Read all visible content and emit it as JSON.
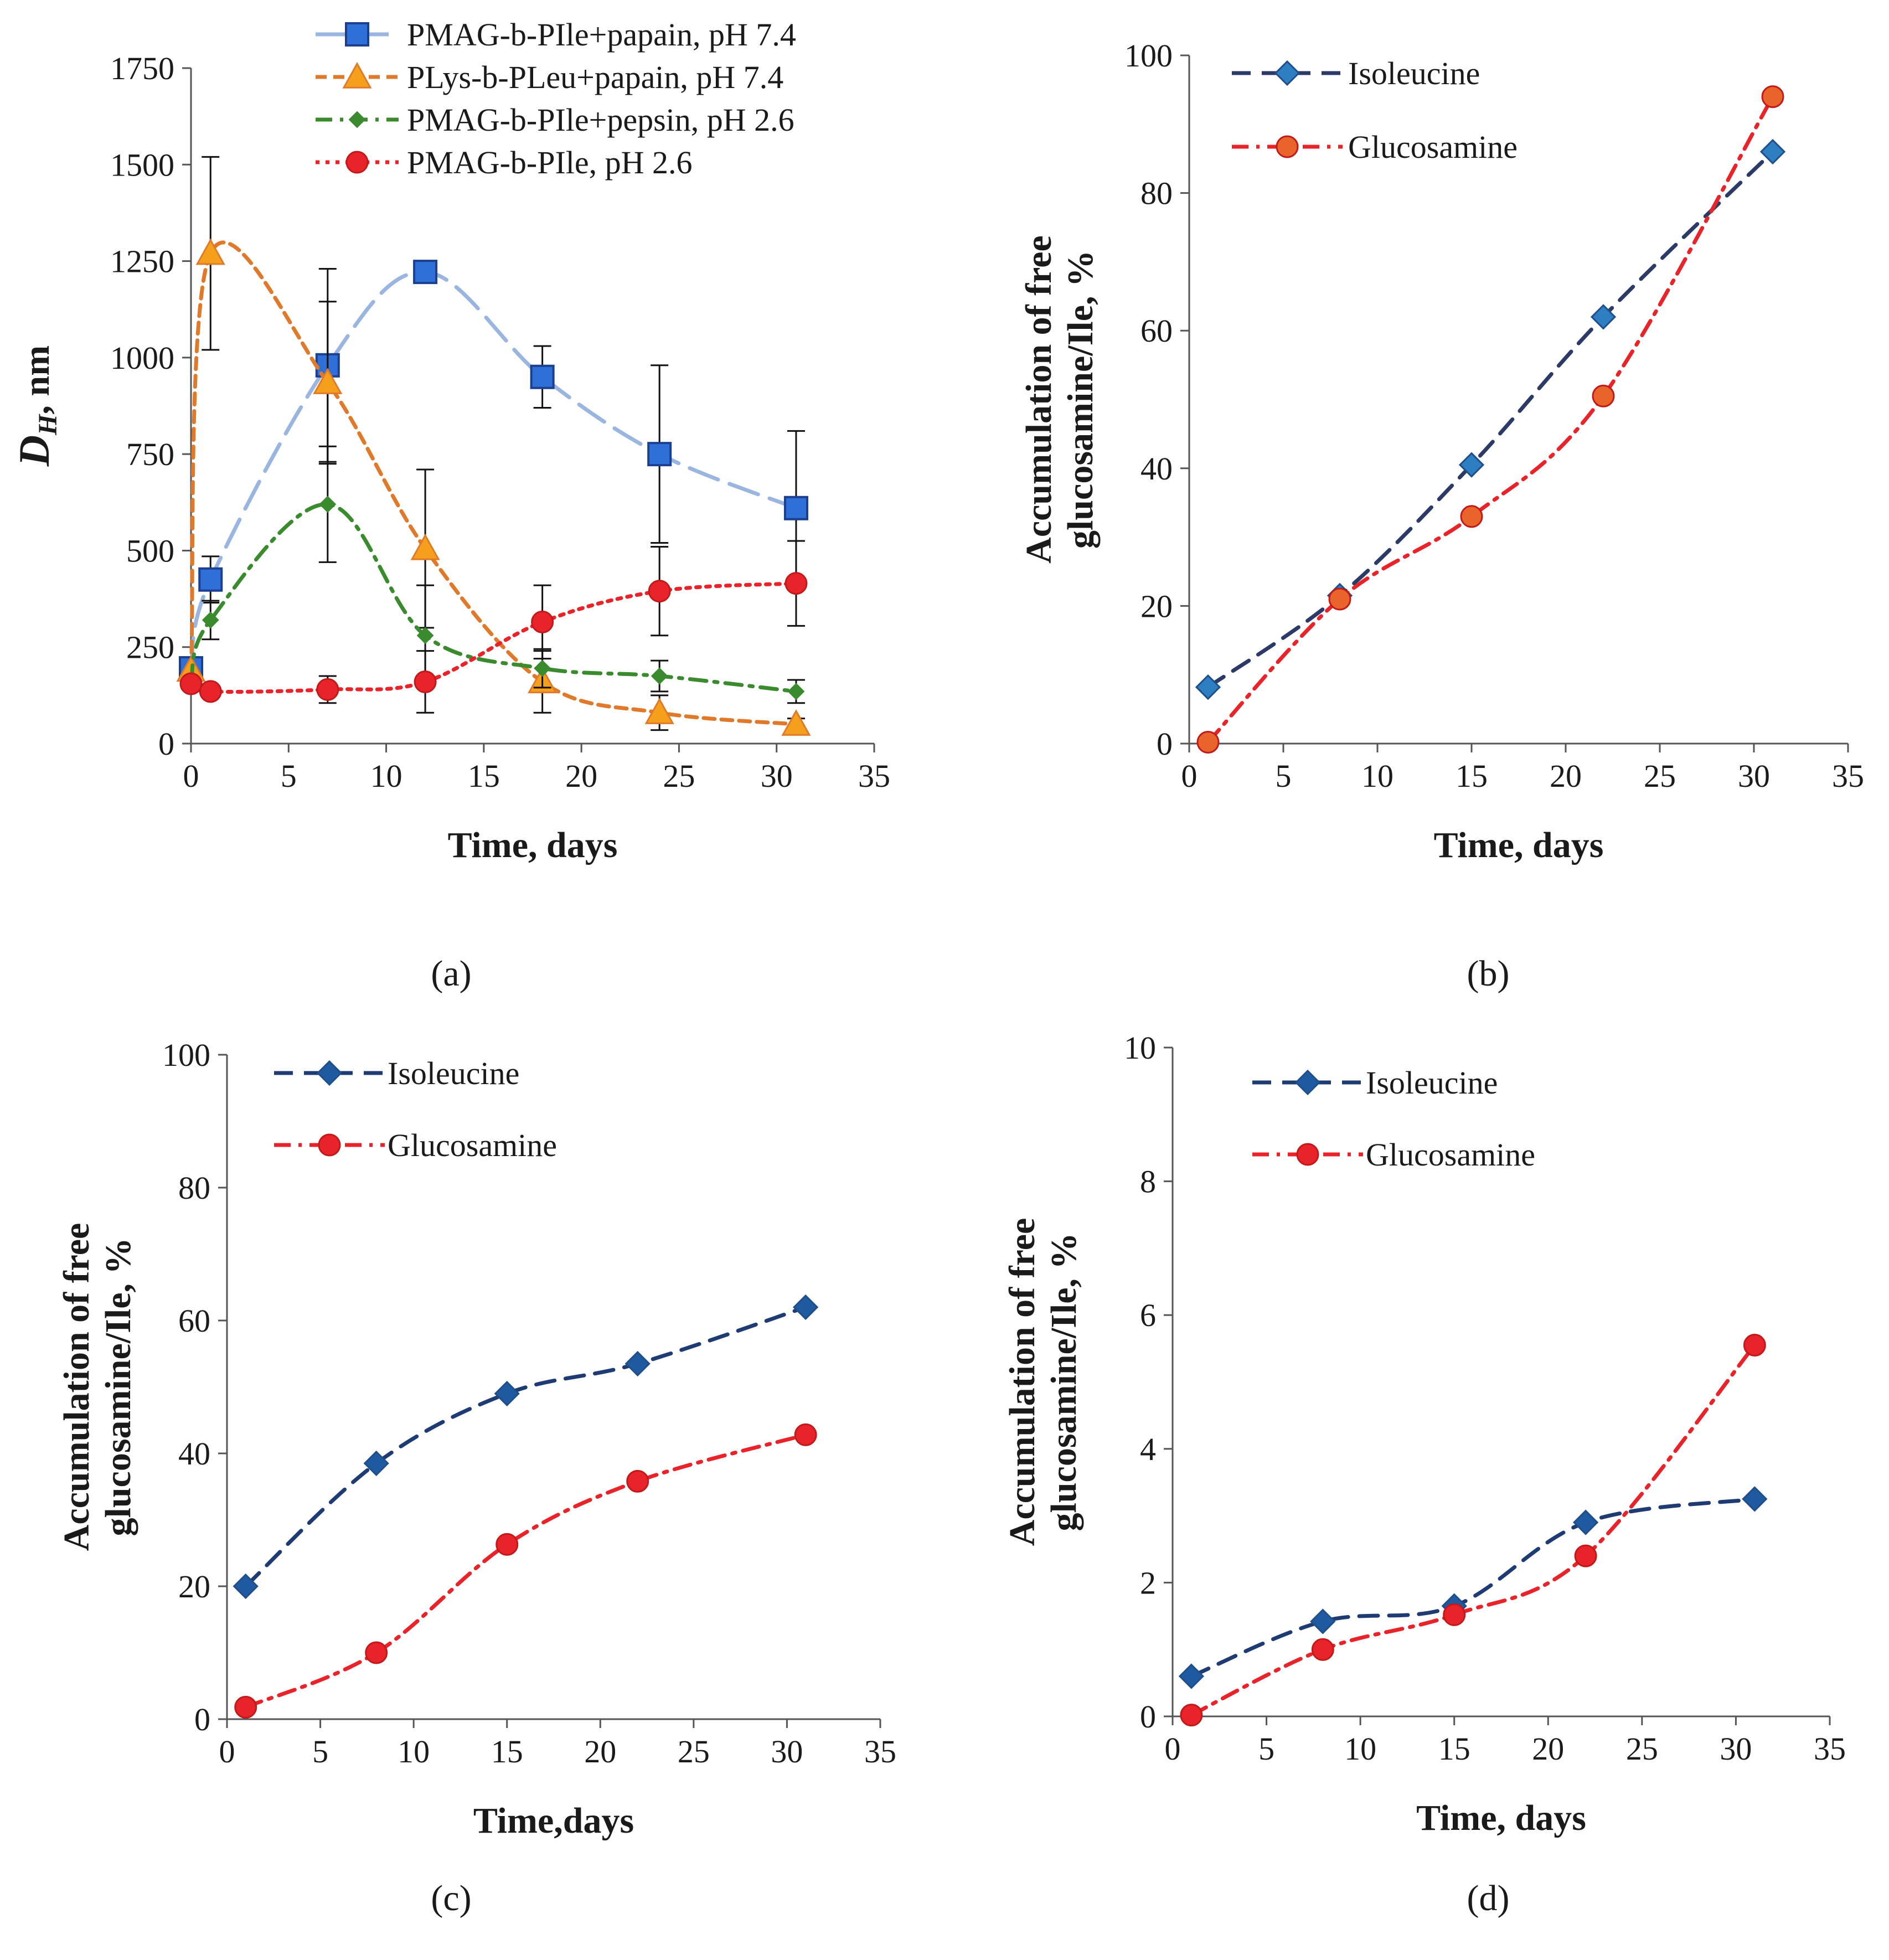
{
  "chart_data": [
    {
      "id": "a",
      "type": "line",
      "caption": "(a)",
      "xlabel": "Time, days",
      "ylabel": "DH, nm",
      "ylabel_main": "D",
      "ylabel_sub": "H",
      "ylabel_rest": ", nm",
      "xlim": [
        0,
        35
      ],
      "ylim": [
        0,
        1750
      ],
      "xticks": [
        0,
        5,
        10,
        15,
        20,
        25,
        30,
        35
      ],
      "yticks": [
        0,
        250,
        500,
        750,
        1000,
        1250,
        1500,
        1750
      ],
      "legend_position": "top-center",
      "series": [
        {
          "name": "PMAG-b-PIle+papain, pH 7.4",
          "color": "#9ab6e0",
          "marker_color": "#2f6fd8",
          "marker": "square",
          "dash": "long",
          "x": [
            0,
            1,
            7,
            12,
            18,
            24,
            31
          ],
          "y": [
            195,
            425,
            980,
            1222,
            950,
            750,
            610
          ],
          "err": [
            0,
            60,
            250,
            0,
            80,
            230,
            200
          ]
        },
        {
          "name": "PLys-b-PLeu+papain, pH 7.4",
          "color": "#e07a2a",
          "marker_color": "#f4a01c",
          "marker": "triangle",
          "dash": "short",
          "x": [
            0,
            1,
            7,
            12,
            18,
            24,
            31
          ],
          "y": [
            190,
            1270,
            935,
            505,
            160,
            80,
            50
          ],
          "err": [
            0,
            250,
            210,
            205,
            80,
            45,
            15
          ]
        },
        {
          "name": "PMAG-b-PIle+pepsin, pH 2.6",
          "color": "#3a8a2e",
          "marker_color": "#3a8a2e",
          "marker": "diamond-small",
          "dash": "dashdot",
          "x": [
            0,
            1,
            7,
            12,
            18,
            24,
            31
          ],
          "y": [
            160,
            320,
            620,
            280,
            195,
            175,
            135
          ],
          "err": [
            0,
            50,
            150,
            130,
            50,
            40,
            30
          ]
        },
        {
          "name": "PMAG-b-PIle, pH 2.6",
          "color": "#e8242a",
          "marker_color": "#e8242a",
          "marker": "circle",
          "dash": "dotted",
          "x": [
            0,
            1,
            7,
            12,
            18,
            24,
            31
          ],
          "y": [
            155,
            135,
            140,
            160,
            315,
            395,
            415
          ],
          "err": [
            0,
            0,
            35,
            80,
            95,
            115,
            110
          ]
        }
      ]
    },
    {
      "id": "b",
      "type": "line",
      "caption": "(b)",
      "xlabel": "Time, days",
      "ylabel_line1": "Accumulation of free",
      "ylabel_line2": "glucosamine/Ile, %",
      "xlim": [
        0,
        35
      ],
      "ylim": [
        0,
        100
      ],
      "xticks": [
        0,
        5,
        10,
        15,
        20,
        25,
        30,
        35
      ],
      "yticks": [
        0,
        20,
        40,
        60,
        80,
        100
      ],
      "legend_position": "top-left",
      "series": [
        {
          "name": "Isoleucine",
          "color": "#2b3a66",
          "marker_color": "#2d7fc1",
          "marker": "diamond",
          "dash": "dashed",
          "x": [
            1,
            8,
            15,
            22,
            31
          ],
          "y": [
            8.2,
            21.5,
            40.5,
            62,
            86
          ]
        },
        {
          "name": "Glucosamine",
          "color": "#e8242a",
          "marker_color": "#e8642a",
          "marker": "circle",
          "dash": "dashdot",
          "x": [
            1,
            8,
            15,
            22,
            31
          ],
          "y": [
            0.2,
            21,
            33,
            50.5,
            94
          ]
        }
      ]
    },
    {
      "id": "c",
      "type": "line",
      "caption": "(c)",
      "xlabel": "Time,days",
      "ylabel_line1": "Accumulation of free",
      "ylabel_line2": "glucosamine/Ile, %",
      "xlim": [
        0,
        35
      ],
      "ylim": [
        0,
        100
      ],
      "xticks": [
        0,
        5,
        10,
        15,
        20,
        25,
        30,
        35
      ],
      "yticks": [
        0,
        20,
        40,
        60,
        80,
        100
      ],
      "legend_position": "top-left",
      "series": [
        {
          "name": "Isoleucine",
          "color": "#1f3b73",
          "marker_color": "#1f5aa0",
          "marker": "diamond",
          "dash": "dashed",
          "x": [
            1,
            8,
            15,
            22,
            31
          ],
          "y": [
            20,
            38.5,
            49,
            53.5,
            62
          ]
        },
        {
          "name": "Glucosamine",
          "color": "#e8242a",
          "marker_color": "#e8242a",
          "marker": "circle",
          "dash": "dashdot",
          "x": [
            1,
            8,
            15,
            22,
            31
          ],
          "y": [
            1.8,
            10,
            26.3,
            35.8,
            42.8
          ]
        }
      ]
    },
    {
      "id": "d",
      "type": "line",
      "caption": "(d)",
      "xlabel": "Time, days",
      "ylabel_line1": "Accumulation of free",
      "ylabel_line2": "glucosamine/Ile, %",
      "xlim": [
        0,
        35
      ],
      "ylim": [
        0,
        10
      ],
      "xticks": [
        0,
        5,
        10,
        15,
        20,
        25,
        30,
        35
      ],
      "yticks": [
        0,
        2,
        4,
        6,
        8,
        10
      ],
      "legend_position": "top-left",
      "series": [
        {
          "name": "Isoleucine",
          "color": "#1f3b73",
          "marker_color": "#1f5aa0",
          "marker": "diamond",
          "dash": "dashed",
          "x": [
            1,
            8,
            15,
            22,
            31
          ],
          "y": [
            0.6,
            1.42,
            1.65,
            2.9,
            3.25
          ]
        },
        {
          "name": "Glucosamine",
          "color": "#e8242a",
          "marker_color": "#e8242a",
          "marker": "circle",
          "dash": "dashdot",
          "x": [
            1,
            8,
            15,
            22,
            31
          ],
          "y": [
            0.02,
            1.0,
            1.52,
            2.4,
            5.55
          ]
        }
      ]
    }
  ]
}
